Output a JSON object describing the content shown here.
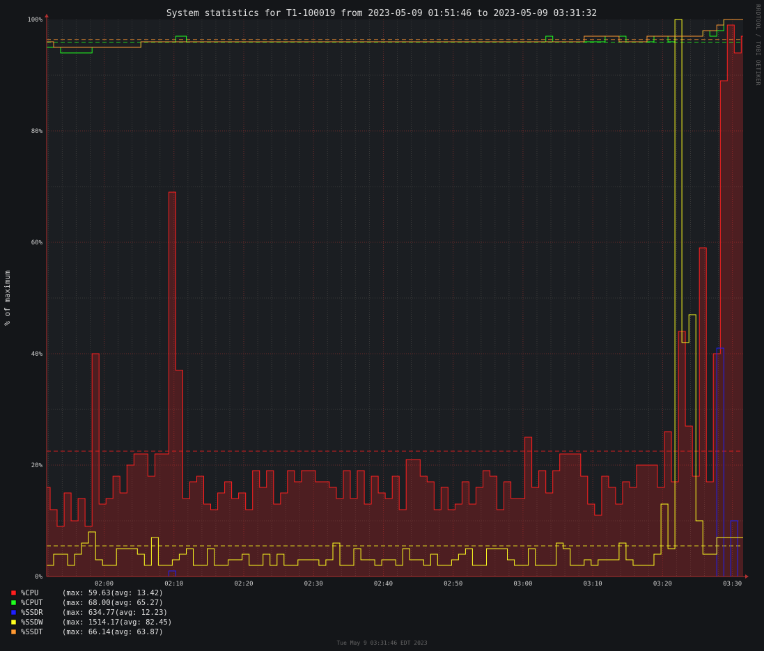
{
  "chart_data": {
    "type": "line",
    "title": "System statistics for T1-100019 from 2023-05-09 01:51:46 to 2023-05-09 03:31:32",
    "ylabel": "% of maximum",
    "xlabel": "",
    "ylim": [
      0,
      100
    ],
    "xlim": [
      "01:51:46",
      "03:31:32"
    ],
    "y_ticks": [
      "0%",
      "20%",
      "40%",
      "60%",
      "80%",
      "100%"
    ],
    "x_ticks": [
      "02:00",
      "02:10",
      "02:20",
      "02:30",
      "02:40",
      "02:50",
      "03:00",
      "03:10",
      "03:20",
      "03:30"
    ],
    "grid": true,
    "legend_position": "bottom-left",
    "sample_interval_min": 0.5,
    "series": [
      {
        "name": "%CPU",
        "color": "#ff2020",
        "fill": true,
        "max": "59.63",
        "avg": "13.42",
        "values": [
          16,
          12,
          12,
          9,
          9,
          15,
          15,
          10,
          10,
          14,
          14,
          9,
          9,
          40,
          40,
          13,
          13,
          14,
          14,
          18,
          18,
          15,
          15,
          20,
          20,
          22,
          22,
          22,
          22,
          18,
          18,
          22,
          22,
          22,
          22,
          69,
          69,
          37,
          37,
          14,
          14,
          17,
          17,
          18,
          18,
          13,
          13,
          12,
          12,
          15,
          15,
          17,
          17,
          14,
          14,
          15,
          15,
          12,
          12,
          19,
          19,
          16,
          16,
          19,
          19,
          13,
          13,
          15,
          15,
          19,
          19,
          17,
          17,
          19,
          19,
          19,
          19,
          17,
          17,
          17,
          17,
          16,
          16,
          14,
          14,
          19,
          19,
          14,
          14,
          19,
          19,
          13,
          13,
          18,
          18,
          15,
          15,
          14,
          14,
          18,
          18,
          12,
          12,
          21,
          21,
          21,
          21,
          18,
          18,
          17,
          17,
          12,
          12,
          16,
          16,
          12,
          12,
          13,
          13,
          17,
          17,
          13,
          13,
          16,
          16,
          19,
          19,
          18,
          18,
          12,
          12,
          17,
          17,
          14,
          14,
          14,
          14,
          25,
          25,
          16,
          16,
          19,
          19,
          15,
          15,
          19,
          19,
          22,
          22,
          22,
          22,
          22,
          22,
          18,
          18,
          13,
          13,
          11,
          11,
          18,
          18,
          16,
          16,
          13,
          13,
          17,
          17,
          16,
          16,
          20,
          20,
          20,
          20,
          20,
          20,
          16,
          16,
          26,
          26,
          17,
          17,
          44,
          44,
          27,
          27,
          18,
          18,
          59,
          59,
          17,
          17,
          40,
          40,
          89,
          89,
          99,
          99,
          94,
          94,
          97,
          97,
          97,
          97
        ]
      },
      {
        "name": "%CPUT",
        "color": "#20ff20",
        "fill": false,
        "max": "68.00",
        "avg": "65.27",
        "values": [
          95,
          95,
          95,
          95,
          94,
          94,
          94,
          94,
          94,
          94,
          94,
          94,
          94,
          95,
          95,
          95,
          95,
          95,
          95,
          95,
          95,
          95,
          95,
          95,
          95,
          95,
          95,
          96,
          96,
          96,
          96,
          96,
          96,
          96,
          96,
          96,
          96,
          97,
          97,
          97,
          96,
          96,
          96,
          96,
          96,
          96,
          96,
          96,
          96,
          96,
          96,
          96,
          96,
          96,
          96,
          96,
          96,
          96,
          96,
          96,
          96,
          96,
          96,
          96,
          96,
          96,
          96,
          96,
          96,
          96,
          96,
          96,
          96,
          96,
          96,
          96,
          96,
          96,
          96,
          96,
          96,
          96,
          96,
          96,
          96,
          96,
          96,
          96,
          96,
          96,
          96,
          96,
          96,
          96,
          96,
          96,
          96,
          96,
          96,
          96,
          96,
          96,
          96,
          96,
          96,
          96,
          96,
          96,
          96,
          96,
          96,
          96,
          96,
          96,
          96,
          96,
          96,
          96,
          96,
          96,
          96,
          96,
          96,
          96,
          96,
          96,
          96,
          96,
          96,
          96,
          96,
          96,
          96,
          96,
          96,
          96,
          96,
          96,
          96,
          96,
          96,
          96,
          96,
          97,
          97,
          96,
          96,
          96,
          96,
          96,
          96,
          96,
          96,
          96,
          96,
          96,
          96,
          96,
          96,
          96,
          97,
          97,
          97,
          97,
          97,
          97,
          96,
          96,
          96,
          96,
          96,
          96,
          96,
          96,
          97,
          97,
          97,
          97,
          96,
          96,
          97,
          97,
          97,
          97,
          97,
          97,
          97,
          97,
          98,
          98,
          97,
          97,
          98,
          98,
          100,
          100,
          100,
          100,
          100,
          100,
          100,
          100
        ]
      },
      {
        "name": "%SSDR",
        "color": "#2020ff",
        "fill": false,
        "max": "634.77",
        "avg": "12.23",
        "values": [
          0,
          0,
          0,
          0,
          0,
          0,
          0,
          0,
          0,
          0,
          0,
          0,
          0,
          0,
          0,
          0,
          0,
          0,
          0,
          0,
          0,
          0,
          0,
          0,
          0,
          0,
          0,
          0,
          0,
          0,
          0,
          0,
          0,
          0,
          0,
          1,
          1,
          0,
          0,
          0,
          0,
          0,
          0,
          0,
          0,
          0,
          0,
          0,
          0,
          0,
          0,
          0,
          0,
          0,
          0,
          0,
          0,
          0,
          0,
          0,
          0,
          0,
          0,
          0,
          0,
          0,
          0,
          0,
          0,
          0,
          0,
          0,
          0,
          0,
          0,
          0,
          0,
          0,
          0,
          0,
          0,
          0,
          0,
          0,
          0,
          0,
          0,
          0,
          0,
          0,
          0,
          0,
          0,
          0,
          0,
          0,
          0,
          0,
          0,
          0,
          0,
          0,
          0,
          0,
          0,
          0,
          0,
          0,
          0,
          0,
          0,
          0,
          0,
          0,
          0,
          0,
          0,
          0,
          0,
          0,
          0,
          0,
          0,
          0,
          0,
          0,
          0,
          0,
          0,
          0,
          0,
          0,
          0,
          0,
          0,
          0,
          0,
          0,
          0,
          0,
          0,
          0,
          0,
          0,
          0,
          0,
          0,
          0,
          0,
          0,
          0,
          0,
          0,
          0,
          0,
          0,
          0,
          0,
          0,
          0,
          0,
          0,
          0,
          0,
          0,
          0,
          0,
          0,
          0,
          0,
          0,
          0,
          0,
          0,
          0,
          0,
          0,
          0,
          0,
          0,
          0,
          0,
          0,
          0,
          0,
          0,
          0,
          0,
          0,
          0,
          0,
          0,
          41,
          41,
          0,
          0,
          10,
          10,
          0,
          0,
          0,
          0,
          4,
          4
        ]
      },
      {
        "name": "%SSDW",
        "color": "#ffff20",
        "fill": false,
        "max": "1514.17",
        "avg": "82.45",
        "values": [
          2,
          2,
          4,
          4,
          4,
          4,
          2,
          2,
          4,
          4,
          6,
          6,
          8,
          8,
          3,
          3,
          2,
          2,
          2,
          2,
          5,
          5,
          5,
          5,
          5,
          5,
          4,
          4,
          2,
          2,
          7,
          7,
          2,
          2,
          2,
          2,
          3,
          3,
          4,
          4,
          5,
          5,
          2,
          2,
          2,
          2,
          5,
          5,
          2,
          2,
          2,
          2,
          3,
          3,
          3,
          3,
          4,
          4,
          2,
          2,
          2,
          2,
          4,
          4,
          2,
          2,
          4,
          4,
          2,
          2,
          2,
          2,
          3,
          3,
          3,
          3,
          3,
          3,
          2,
          2,
          3,
          3,
          6,
          6,
          2,
          2,
          2,
          2,
          5,
          5,
          3,
          3,
          3,
          3,
          2,
          2,
          3,
          3,
          3,
          3,
          2,
          2,
          5,
          5,
          3,
          3,
          3,
          3,
          2,
          2,
          4,
          4,
          2,
          2,
          2,
          2,
          3,
          3,
          4,
          4,
          5,
          5,
          2,
          2,
          2,
          2,
          5,
          5,
          5,
          5,
          5,
          5,
          3,
          3,
          2,
          2,
          2,
          2,
          5,
          5,
          2,
          2,
          2,
          2,
          2,
          2,
          6,
          6,
          5,
          5,
          2,
          2,
          2,
          2,
          3,
          3,
          2,
          2,
          3,
          3,
          3,
          3,
          3,
          3,
          6,
          6,
          3,
          3,
          2,
          2,
          2,
          2,
          2,
          2,
          4,
          4,
          13,
          13,
          5,
          5,
          100,
          100,
          42,
          42,
          47,
          47,
          10,
          10,
          4,
          4,
          4,
          4,
          7,
          7,
          7,
          7,
          7,
          7,
          7,
          7
        ]
      },
      {
        "name": "%SSDT",
        "color": "#ff9933",
        "fill": false,
        "max": "66.14",
        "avg": "63.87",
        "values": [
          96,
          96,
          95,
          95,
          95,
          95,
          95,
          95,
          95,
          95,
          95,
          95,
          95,
          95,
          95,
          95,
          95,
          95,
          95,
          95,
          95,
          95,
          95,
          95,
          95,
          95,
          95,
          96,
          96,
          96,
          96,
          96,
          96,
          96,
          96,
          96,
          96,
          96,
          96,
          96,
          96,
          96,
          96,
          96,
          96,
          96,
          96,
          96,
          96,
          96,
          96,
          96,
          96,
          96,
          96,
          96,
          96,
          96,
          96,
          96,
          96,
          96,
          96,
          96,
          96,
          96,
          96,
          96,
          96,
          96,
          96,
          96,
          96,
          96,
          96,
          96,
          96,
          96,
          96,
          96,
          96,
          96,
          96,
          96,
          96,
          96,
          96,
          96,
          96,
          96,
          96,
          96,
          96,
          96,
          96,
          96,
          96,
          96,
          96,
          96,
          96,
          96,
          96,
          96,
          96,
          96,
          96,
          96,
          96,
          96,
          96,
          96,
          96,
          96,
          96,
          96,
          96,
          96,
          96,
          96,
          96,
          96,
          96,
          96,
          96,
          96,
          96,
          96,
          96,
          96,
          96,
          96,
          96,
          96,
          96,
          96,
          96,
          96,
          96,
          96,
          96,
          96,
          96,
          96,
          96,
          96,
          96,
          96,
          96,
          96,
          96,
          96,
          96,
          96,
          97,
          97,
          97,
          97,
          97,
          97,
          97,
          97,
          97,
          97,
          96,
          96,
          96,
          96,
          96,
          96,
          96,
          96,
          97,
          97,
          97,
          97,
          97,
          97,
          97,
          97,
          97,
          97,
          97,
          97,
          97,
          97,
          97,
          97,
          98,
          98,
          98,
          98,
          99,
          99,
          100,
          100,
          100,
          100,
          100,
          100,
          100,
          100
        ]
      }
    ],
    "hlines": [
      {
        "value": 96.4,
        "color": "#ff9933"
      },
      {
        "value": 95.9,
        "color": "#20ff20"
      },
      {
        "value": 22.5,
        "color": "#ff2020"
      },
      {
        "value": 5.5,
        "color": "#ffff20"
      }
    ]
  },
  "watermark": "RRDTOOL / TOBI OETIKER",
  "footer_timestamp": "Tue May  9 03:31:46 EDT 2023"
}
